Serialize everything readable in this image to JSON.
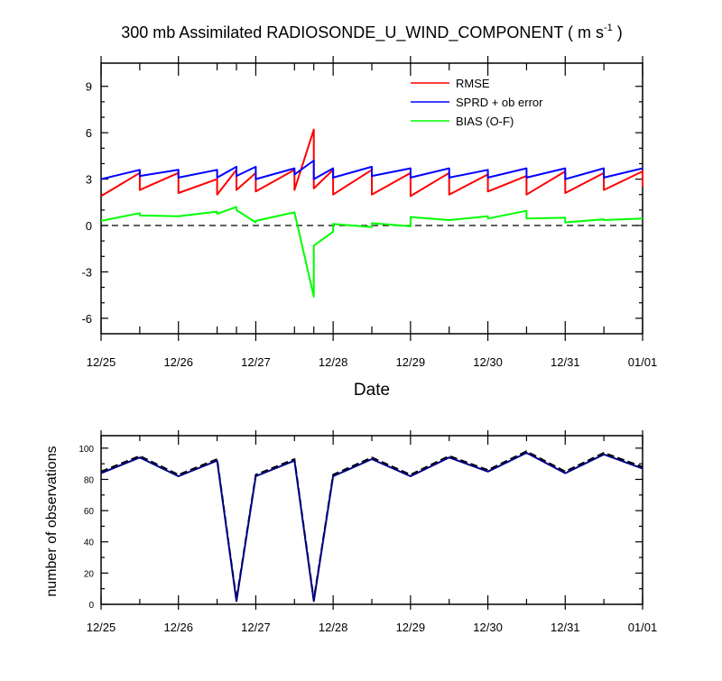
{
  "colors": {
    "rmse": "#ff0000",
    "sprd": "#0000ff",
    "bias": "#00ff00",
    "axis": "#000000",
    "obs_dashed": "#000000",
    "obs_solid": "#000080"
  },
  "chart_data": [
    {
      "type": "line",
      "title_main": "300 mb Assimilated RADIOSONDE_U_WIND_COMPONENT ( m s",
      "title_sup": "-1",
      "title_end": " )",
      "xlabel": "Date",
      "ylabel": "",
      "xlim": [
        0,
        7
      ],
      "ylim": [
        -7,
        10.5
      ],
      "yticks": [
        -6,
        -3,
        0,
        3,
        6,
        9
      ],
      "ytick_labels": [
        "-6",
        "-3",
        "0",
        "3",
        "6",
        "9"
      ],
      "xtick_labels": [
        "12/25",
        "12/26",
        "12/27",
        "12/28",
        "12/29",
        "12/30",
        "12/31",
        "01/01"
      ],
      "zero_line": "dashed",
      "legend_position": "top-right",
      "series": [
        {
          "name": "RMSE",
          "x": [
            0,
            0.5,
            0.5,
            1,
            1,
            1.5,
            1.5,
            1.75,
            1.75,
            2,
            2,
            2.5,
            2.5,
            2.75,
            2.75,
            3,
            3,
            3.5,
            3.5,
            4,
            4,
            4.5,
            4.5,
            5,
            5,
            5.5,
            5.5,
            6,
            6,
            6.5,
            6.5,
            7,
            7
          ],
          "y": [
            1.9,
            3.4,
            2.3,
            3.4,
            2.1,
            3.0,
            2.0,
            3.6,
            2.3,
            3.4,
            2.2,
            3.6,
            2.3,
            6.2,
            2.4,
            3.6,
            2.0,
            3.6,
            2.0,
            3.4,
            1.9,
            3.4,
            2.0,
            3.3,
            2.2,
            3.2,
            2.0,
            3.5,
            2.1,
            3.4,
            2.3,
            3.5,
            2.5
          ]
        },
        {
          "name": "SPRD + ob error",
          "x": [
            0,
            0.5,
            0.5,
            1,
            1,
            1.5,
            1.5,
            1.75,
            1.75,
            2,
            2,
            2.5,
            2.5,
            2.75,
            2.75,
            3,
            3,
            3.5,
            3.5,
            4,
            4,
            4.5,
            4.5,
            5,
            5,
            5.5,
            5.5,
            6,
            6,
            6.5,
            6.5,
            7
          ],
          "y": [
            3.0,
            3.6,
            3.2,
            3.6,
            3.1,
            3.6,
            3.1,
            3.8,
            3.2,
            3.8,
            3.0,
            3.7,
            3.3,
            4.2,
            3.0,
            3.7,
            3.1,
            3.8,
            3.2,
            3.7,
            3.1,
            3.7,
            3.1,
            3.6,
            3.1,
            3.7,
            3.1,
            3.7,
            3.0,
            3.7,
            3.1,
            3.7
          ]
        },
        {
          "name": "BIAS (O-F)",
          "x": [
            0,
            0.5,
            0.5,
            1,
            1.5,
            1.5,
            1.75,
            1.75,
            2,
            2,
            2.5,
            2.75,
            2.75,
            3,
            3,
            3.5,
            3.5,
            4,
            4,
            4.5,
            5,
            5,
            5.5,
            5.5,
            6,
            6,
            6.5,
            6.5,
            7
          ],
          "y": [
            0.3,
            0.8,
            0.65,
            0.6,
            0.9,
            0.75,
            1.2,
            1.0,
            0.2,
            0.3,
            0.85,
            -4.6,
            -1.3,
            -0.4,
            0.1,
            -0.1,
            0.15,
            -0.05,
            0.55,
            0.35,
            0.6,
            0.45,
            0.95,
            0.45,
            0.5,
            0.2,
            0.4,
            0.35,
            0.45
          ]
        }
      ]
    },
    {
      "type": "line",
      "title": "",
      "xlabel": "",
      "ylabel": "number of observations",
      "xlim": [
        0,
        7
      ],
      "ylim": [
        0,
        108
      ],
      "yticks": [
        0,
        20,
        40,
        60,
        80,
        100
      ],
      "ytick_labels": [
        "0",
        "20",
        "40",
        "60",
        "80",
        "100"
      ],
      "xtick_labels": [
        "12/25",
        "12/26",
        "12/27",
        "12/28",
        "12/29",
        "12/30",
        "12/31",
        "01/01"
      ],
      "series": [
        {
          "name": "obs_dashed",
          "x": [
            0,
            0.5,
            1,
            1.5,
            1.75,
            2,
            2.5,
            2.75,
            3,
            3.5,
            4,
            4.5,
            5,
            5.5,
            6,
            6.5,
            7
          ],
          "y": [
            85,
            95,
            83,
            93,
            3,
            83,
            93,
            3,
            83,
            94,
            83,
            95,
            86,
            98,
            85,
            97,
            88
          ]
        },
        {
          "name": "obs_solid",
          "x": [
            0,
            0.5,
            1,
            1.5,
            1.75,
            2,
            2.5,
            2.75,
            3,
            3.5,
            4,
            4.5,
            5,
            5.5,
            6,
            6.5,
            7
          ],
          "y": [
            84,
            94,
            82,
            92,
            2,
            82,
            92,
            2,
            82,
            93,
            82,
            94,
            85,
            97,
            84,
            96,
            87
          ]
        }
      ]
    }
  ]
}
